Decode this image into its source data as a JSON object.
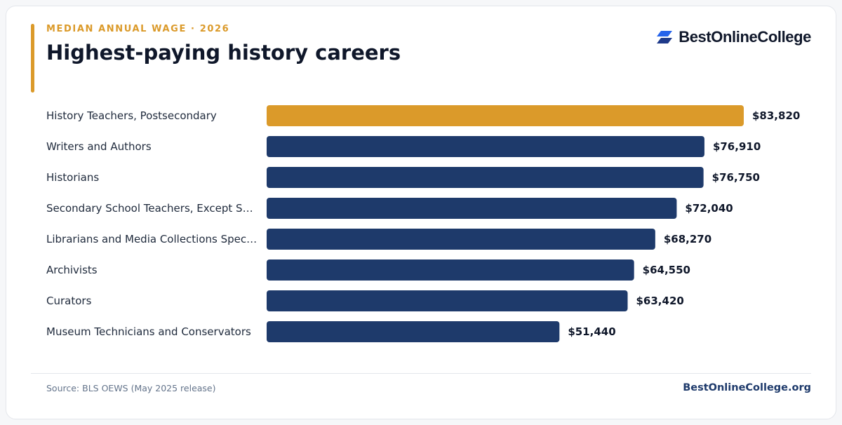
{
  "header": {
    "eyebrow": "MEDIAN ANNUAL WAGE · 2026",
    "title": "Highest-paying history careers"
  },
  "brand": {
    "name": "BestOnlineCollege",
    "icon": "brand-logo-icon"
  },
  "footer": {
    "source": "Source: BLS OEWS (May 2025 release)",
    "site": "BestOnlineCollege.org"
  },
  "colors": {
    "accent": "#db9a2a",
    "bar": "#1e3a6b",
    "highlight_bar": "#db9a2a",
    "site": "#1e3a6b"
  },
  "chart_data": {
    "type": "bar",
    "orientation": "horizontal",
    "categories": [
      "History Teachers, Postsecondary",
      "Writers and Authors",
      "Historians",
      "Secondary School Teachers, Except S…",
      "Librarians and Media Collections Spec…",
      "Archivists",
      "Curators",
      "Museum Technicians and Conservators"
    ],
    "values": [
      83820,
      76910,
      76750,
      72040,
      68270,
      64550,
      63420,
      51440
    ],
    "value_labels": [
      "$83,820",
      "$76,910",
      "$76,750",
      "$72,040",
      "$68,270",
      "$64,550",
      "$63,420",
      "$51,440"
    ],
    "highlight_index": 0,
    "xlim": [
      0,
      83820
    ],
    "title": "Highest-paying history careers",
    "xlabel": "",
    "ylabel": "",
    "grid": false,
    "legend": "none"
  }
}
